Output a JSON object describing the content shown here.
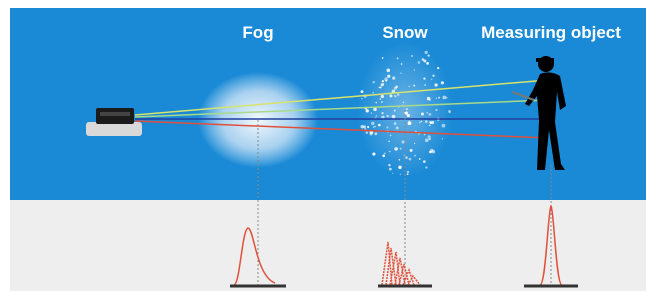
{
  "labels": [
    "Fog",
    "Snow",
    "Measuring object"
  ]
}
